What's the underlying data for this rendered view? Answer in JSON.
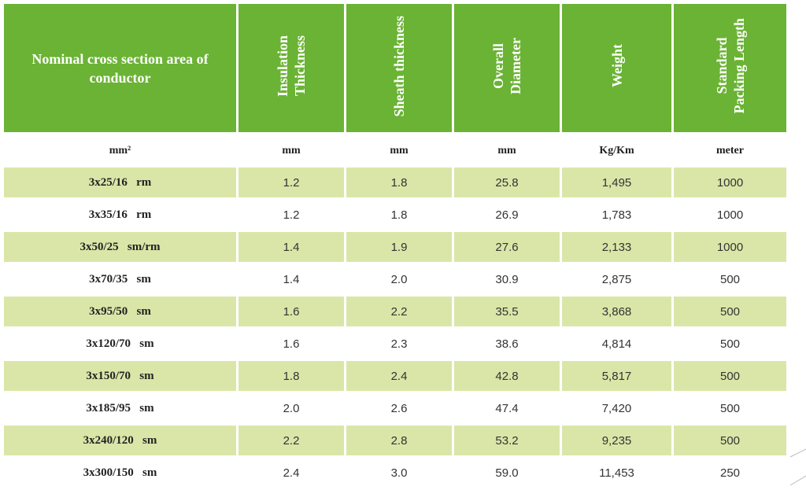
{
  "headers": [
    "Nominal cross section area of conductor",
    "Insulation\nThickness",
    "Sheath thickness",
    "Overall\nDiameter",
    "Weight",
    "Standard\nPacking Length"
  ],
  "units": [
    "mm²",
    "mm",
    "mm",
    "mm",
    "Kg/Km",
    "meter"
  ],
  "rows": [
    [
      "3x25/16   rm",
      "1.2",
      "1.8",
      "25.8",
      "1,495",
      "1000"
    ],
    [
      "3x35/16   rm",
      "1.2",
      "1.8",
      "26.9",
      "1,783",
      "1000"
    ],
    [
      "3x50/25   sm/rm",
      "1.4",
      "1.9",
      "27.6",
      "2,133",
      "1000"
    ],
    [
      "3x70/35   sm",
      "1.4",
      "2.0",
      "30.9",
      "2,875",
      "500"
    ],
    [
      "3x95/50   sm",
      "1.6",
      "2.2",
      "35.5",
      "3,868",
      "500"
    ],
    [
      "3x120/70   sm",
      "1.6",
      "2.3",
      "38.6",
      "4,814",
      "500"
    ],
    [
      "3x150/70   sm",
      "1.8",
      "2.4",
      "42.8",
      "5,817",
      "500"
    ],
    [
      "3x185/95   sm",
      "2.0",
      "2.6",
      "47.4",
      "7,420",
      "500"
    ],
    [
      "3x240/120   sm",
      "2.2",
      "2.8",
      "53.2",
      "9,235",
      "500"
    ],
    [
      "3x300/150   sm",
      "2.4",
      "3.0",
      "59.0",
      "11,453",
      "250"
    ]
  ],
  "colors": {
    "header_bg": "#6ab334",
    "row_shade": "#dae6a8"
  }
}
